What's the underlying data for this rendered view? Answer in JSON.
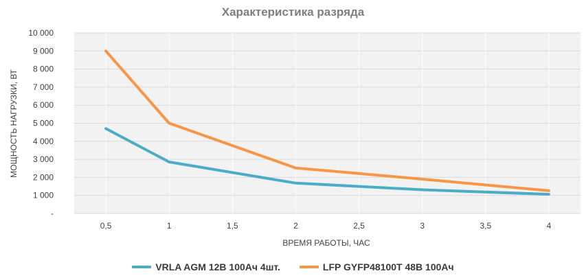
{
  "chart_data": {
    "type": "line",
    "title": "Характеристика разряда",
    "xlabel": "ВРЕМЯ РАБОТЫ, ЧАС",
    "ylabel": "МОЩНОСТЬ НАГРУЗКИ, ВТ",
    "x_categories": [
      "0,5",
      "1",
      "1,5",
      "2",
      "2,5",
      "3",
      "3,5",
      "4"
    ],
    "x_values": [
      0.5,
      1,
      1.5,
      2,
      2.5,
      3,
      3.5,
      4
    ],
    "y_ticks": [
      "-",
      "1 000",
      "2 000",
      "3 000",
      "4 000",
      "5 000",
      "6 000",
      "7 000",
      "8 000",
      "9 000",
      "10 000"
    ],
    "ylim": [
      0,
      10000
    ],
    "grid": true,
    "legend_position": "bottom",
    "series": [
      {
        "name": "VRLA AGM 12В 100Ач 4шт.",
        "color": "#4bacc6",
        "x": [
          0.5,
          1,
          2,
          3,
          4
        ],
        "values": [
          4700,
          2850,
          1680,
          1310,
          1060
        ]
      },
      {
        "name": "LFP GYFP48100T 48В 100Ач",
        "color": "#f79646",
        "x": [
          0.5,
          1,
          2,
          3,
          4
        ],
        "values": [
          9000,
          5000,
          2520,
          1900,
          1260
        ]
      }
    ]
  }
}
